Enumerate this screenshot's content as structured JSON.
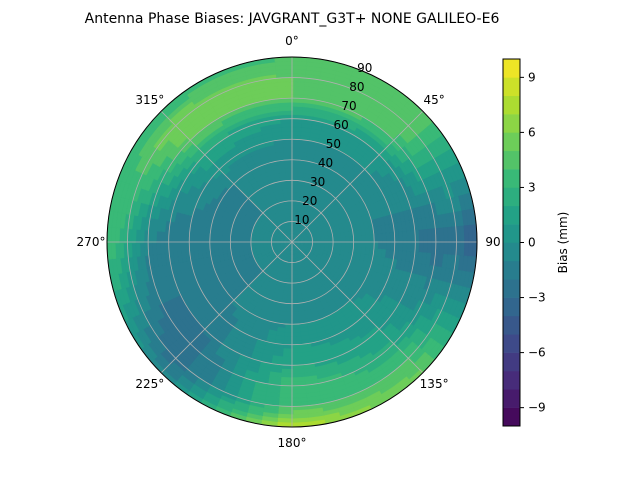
{
  "chart_data": {
    "type": "heatmap",
    "projection": "polar",
    "title": "Antenna Phase Biases: JAVGRANT_G3T+   NONE GALILEO-E6",
    "angle_direction": "clockwise",
    "angle_zero": "top",
    "angular_ticks": [
      {
        "deg": 0,
        "label": "0°"
      },
      {
        "deg": 45,
        "label": "45°"
      },
      {
        "deg": 90,
        "label": "90"
      },
      {
        "deg": 135,
        "label": "135°"
      },
      {
        "deg": 180,
        "label": "180°"
      },
      {
        "deg": 225,
        "label": "225°"
      },
      {
        "deg": 270,
        "label": "270°"
      },
      {
        "deg": 315,
        "label": "315°"
      }
    ],
    "radial_ticks": [
      10,
      20,
      30,
      40,
      50,
      60,
      70,
      80,
      90
    ],
    "radial_tick_labels": [
      "10",
      "20",
      "30",
      "40",
      "50",
      "60",
      "70",
      "80",
      "90"
    ],
    "rlim": [
      0,
      90
    ],
    "grid": true,
    "colormap": "viridis",
    "colorbar": {
      "label": "Bias (mm)",
      "range": [
        -10,
        10
      ],
      "levels": 20,
      "ticks": [
        -9,
        -6,
        -3,
        0,
        3,
        6,
        9
      ],
      "tick_labels": [
        "−9",
        "−6",
        "−3",
        "0",
        "3",
        "6",
        "9"
      ],
      "placement": "right"
    },
    "zenith_values": [
      {
        "zenith": 0,
        "azimuths": [
          0,
          45,
          90,
          135,
          180,
          225,
          270,
          315
        ],
        "values": [
          -1,
          -1,
          -1,
          -1,
          -1,
          -1,
          -1,
          -1
        ]
      },
      {
        "zenith": 20,
        "azimuths": [
          0,
          45,
          90,
          135,
          180,
          225,
          270,
          315
        ],
        "values": [
          -1,
          -1,
          -1,
          -1,
          -1,
          -1,
          -1,
          -1
        ]
      },
      {
        "zenith": 40,
        "azimuths": [
          0,
          45,
          90,
          135,
          180,
          225,
          270,
          315
        ],
        "values": [
          -1,
          -1,
          -1,
          0,
          0,
          -1,
          -2,
          -1
        ]
      },
      {
        "zenith": 60,
        "azimuths": [
          0,
          45,
          90,
          135,
          180,
          225,
          270,
          315
        ],
        "values": [
          1,
          1,
          -2,
          1,
          2,
          -2,
          -2,
          2
        ]
      },
      {
        "zenith": 70,
        "azimuths": [
          0,
          45,
          90,
          135,
          180,
          225,
          270,
          315
        ],
        "values": [
          5,
          4,
          -3,
          2,
          4,
          -3,
          -1,
          5
        ]
      },
      {
        "zenith": 80,
        "azimuths": [
          0,
          45,
          90,
          135,
          180,
          225,
          270,
          315
        ],
        "values": [
          5,
          5,
          -3,
          4,
          4,
          -3,
          2,
          6
        ]
      },
      {
        "zenith": 90,
        "azimuths": [
          0,
          45,
          90,
          135,
          180,
          225,
          270,
          315
        ],
        "values": [
          4,
          5,
          -4,
          5,
          8,
          -1,
          4,
          3
        ]
      }
    ]
  }
}
